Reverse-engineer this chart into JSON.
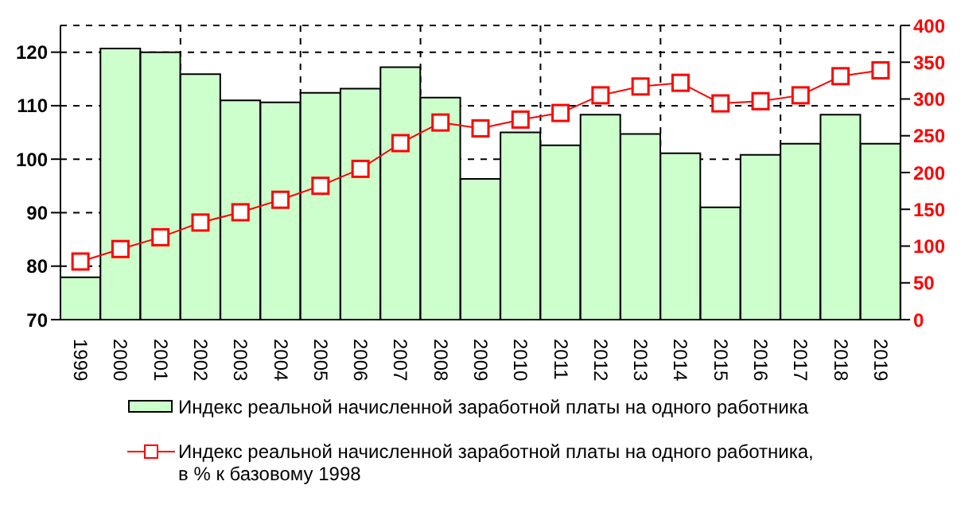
{
  "chart_data": {
    "type": "bar",
    "categories": [
      "1999",
      "2000",
      "2001",
      "2002",
      "2003",
      "2004",
      "2005",
      "2006",
      "2007",
      "2008",
      "2009",
      "2010",
      "2011",
      "2012",
      "2013",
      "2014",
      "2015",
      "2016",
      "2017",
      "2018",
      "2019"
    ],
    "series": [
      {
        "name": "Индекс реальной начисленной заработной платы на одного работника",
        "color": "#ccffcc",
        "values": [
          77.9,
          120.7,
          120,
          115.9,
          111,
          110.6,
          112.4,
          113.2,
          117.2,
          111.5,
          96.3,
          105,
          102.6,
          108.3,
          104.7,
          101.1,
          91,
          100.8,
          102.9,
          108.3,
          102.9
        ]
      },
      {
        "name": "Индекс реальной начисленной заработной платы на одного работника, в % к базовому 1998",
        "type": "line",
        "axis": "y2",
        "color": "#ff0000",
        "marker": "square",
        "values": [
          79,
          96,
          112,
          132,
          146,
          163,
          182,
          205,
          240,
          268,
          260,
          272,
          281,
          305,
          317,
          322,
          294,
          297,
          305,
          331,
          339
        ]
      }
    ],
    "ylim": [
      70,
      125
    ],
    "yticks": [
      70,
      80,
      90,
      100,
      110,
      120
    ],
    "y2lim": [
      0,
      400
    ],
    "y2ticks": [
      0,
      50,
      100,
      150,
      200,
      250,
      300,
      350,
      400
    ],
    "grid": true,
    "legend": "bottom"
  }
}
